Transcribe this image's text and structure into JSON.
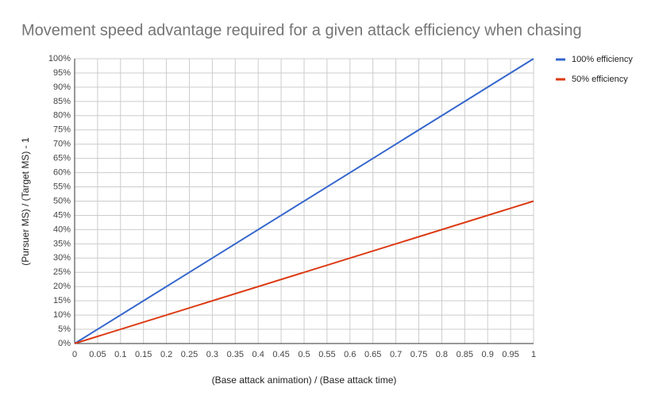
{
  "chart_data": {
    "type": "line",
    "title": "Movement speed advantage required for a given attack efficiency when chasing",
    "x_label": "(Base attack animation) / (Base attack time)",
    "y_label": "(Pursuer MS) / (Target MS) - 1",
    "x": [
      0,
      1
    ],
    "series": [
      {
        "name": "100% efficiency",
        "color": "#3366cc",
        "values": [
          0,
          100
        ]
      },
      {
        "name": "50% efficiency",
        "color": "#dc3912",
        "values": [
          0,
          50
        ]
      }
    ],
    "xlim": [
      0,
      1
    ],
    "xticks": [
      0,
      0.05,
      0.1,
      0.15,
      0.2,
      0.25,
      0.3,
      0.35,
      0.4,
      0.45,
      0.5,
      0.55,
      0.6,
      0.65,
      0.7,
      0.75,
      0.8,
      0.85,
      0.9,
      0.95,
      1
    ],
    "ylim": [
      0,
      100
    ],
    "yticks": [
      {
        "value": 0,
        "label": "0%"
      },
      {
        "value": 5,
        "label": "5%"
      },
      {
        "value": 10,
        "label": "10%"
      },
      {
        "value": 15,
        "label": "15%"
      },
      {
        "value": 20,
        "label": "20%"
      },
      {
        "value": 25,
        "label": "25%"
      },
      {
        "value": 30,
        "label": "30%"
      },
      {
        "value": 35,
        "label": "35%"
      },
      {
        "value": 40,
        "label": "40%"
      },
      {
        "value": 45,
        "label": "45%"
      },
      {
        "value": 50,
        "label": "50%"
      },
      {
        "value": 55,
        "label": "55%"
      },
      {
        "value": 60,
        "label": "60%"
      },
      {
        "value": 65,
        "label": "65%"
      },
      {
        "value": 70,
        "label": "70%"
      },
      {
        "value": 75,
        "label": "75%"
      },
      {
        "value": 80,
        "label": "80%"
      },
      {
        "value": 85,
        "label": "85%"
      },
      {
        "value": 90,
        "label": "90%"
      },
      {
        "value": 95,
        "label": "95%"
      },
      {
        "value": 100,
        "label": "100%"
      }
    ],
    "grid": true,
    "legend": "right"
  }
}
